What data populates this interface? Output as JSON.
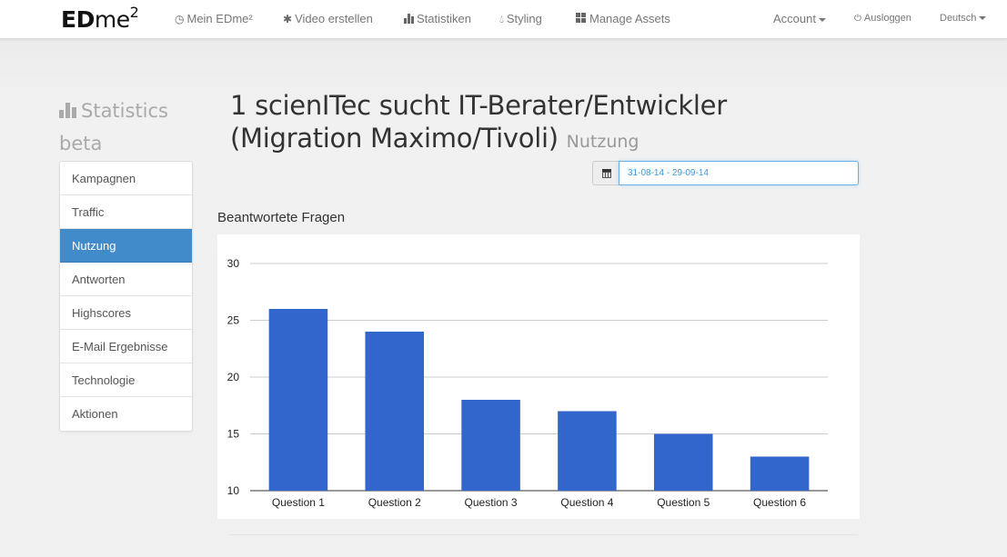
{
  "navbar": {
    "brand": {
      "ed": "ED",
      "me": "me",
      "sup": "2"
    },
    "items": [
      {
        "icon": "clock-icon",
        "label": "Mein EDme²"
      },
      {
        "icon": "asterisk-icon",
        "label": "Video erstellen"
      },
      {
        "icon": "bar-chart-icon",
        "label": "Statistiken"
      },
      {
        "icon": "drop-icon",
        "label": "Styling"
      },
      {
        "icon": "grid-icon",
        "label": "Manage Assets"
      }
    ],
    "account": "Account",
    "logout": "Ausloggen",
    "language": "Deutsch"
  },
  "sidebar": {
    "title_1": "Statistics",
    "title_2": "beta",
    "items": [
      {
        "label": "Kampagnen"
      },
      {
        "label": "Traffic"
      },
      {
        "label": "Nutzung"
      },
      {
        "label": "Antworten"
      },
      {
        "label": "Highscores"
      },
      {
        "label": "E-Mail Ergebnisse"
      },
      {
        "label": "Technologie"
      },
      {
        "label": "Aktionen"
      }
    ],
    "active": "Nutzung"
  },
  "main": {
    "title_line1": "1 scienITec sucht IT-Berater/Entwickler",
    "title_line2": "(Migration Maximo/Tivoli)",
    "subtitle": "Nutzung",
    "date_range": "31-08-14 - 29-09-14",
    "chart_heading": "Beantwortete Fragen"
  },
  "colors": {
    "accent": "#428bca",
    "bar": "#3366cc",
    "input_border": "#66afe9"
  },
  "chart_data": {
    "type": "bar",
    "title": "Beantwortete Fragen",
    "categories": [
      "Question 1",
      "Question 2",
      "Question 3",
      "Question 4",
      "Question 5",
      "Question 6"
    ],
    "values": [
      26,
      24,
      18,
      17,
      15,
      13
    ],
    "yticks": [
      10,
      15,
      20,
      25,
      30
    ],
    "ylim": [
      10,
      30
    ],
    "grid": true,
    "legend": "none"
  }
}
